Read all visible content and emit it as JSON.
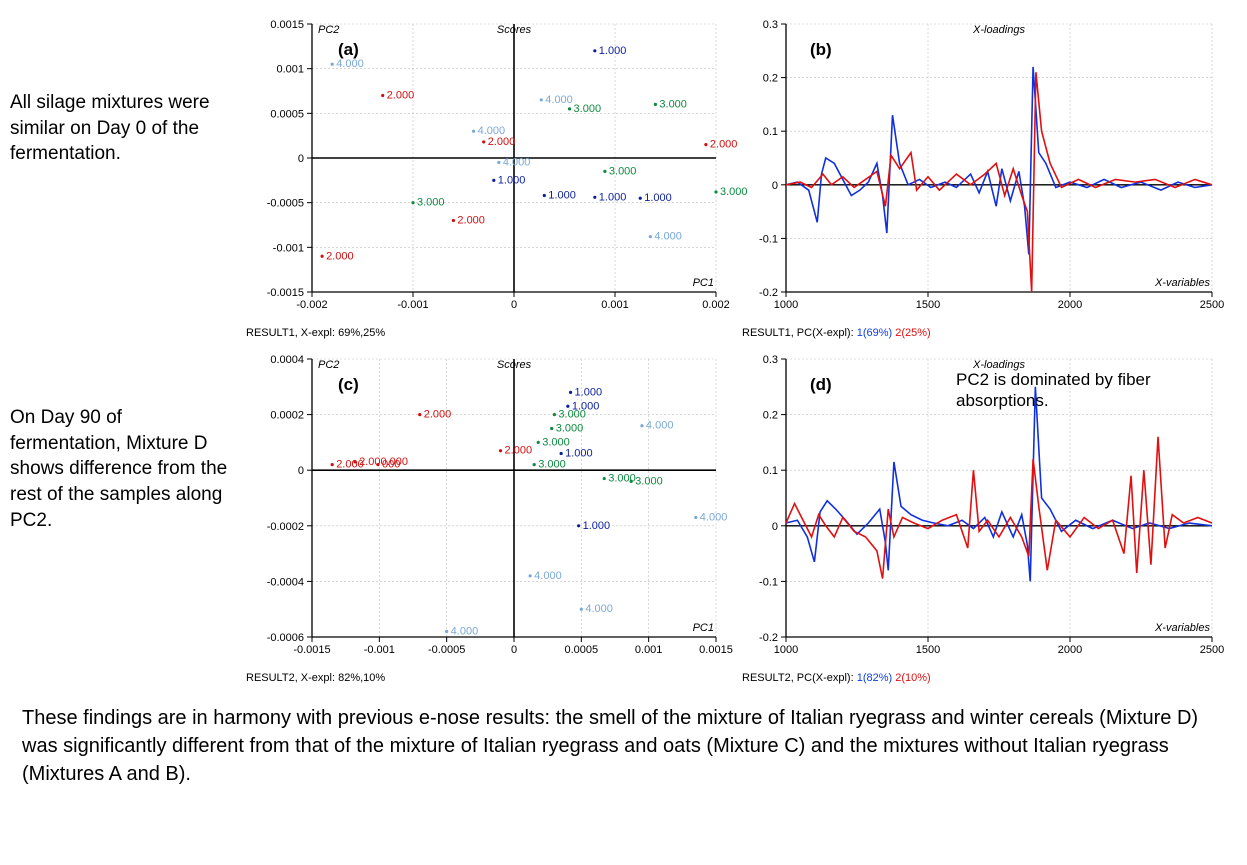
{
  "side_a": "All silage mixtures were similar on Day 0 of the fermentation.",
  "side_c": "On Day 90 of fermentation, Mixture D shows difference from the rest of the samples along PC2.",
  "bottom": "These findings are in harmony with previous e-nose results: the smell of the mixture of Italian ryegrass and winter cereals (Mixture D) was significantly different from that of the mixture of Italian ryegrass and oats (Mixture C) and the mixtures without Italian ryegrass (Mixtures A and B).",
  "panel_a_label": "(a)",
  "panel_b_label": "(b)",
  "panel_c_label": "(c)",
  "panel_d_label": "(d)",
  "loadings_d_anno": "PC2 is dominated by fiber absorptions.",
  "colors": {
    "axis": "#000000",
    "grid": "#bfbfbf",
    "text": "#000000",
    "series_blue": "#1030dd",
    "series_red": "#e01010",
    "pt_darkblue": "#0b1f9c",
    "pt_red": "#d01010",
    "pt_green": "#0d8a3e",
    "pt_lightblue": "#7aa8d8"
  },
  "chart_a": {
    "type": "scatter",
    "title_left": "PC2",
    "title_center": "Scores",
    "xaxis_label": "PC1",
    "xlim": [
      -0.002,
      0.002
    ],
    "ylim": [
      -0.0015,
      0.0015
    ],
    "xticks": [
      -0.002,
      -0.001,
      0,
      0.001,
      0.002
    ],
    "yticks": [
      -0.0015,
      -0.001,
      -0.0005,
      0,
      0.0005,
      0.001,
      0.0015
    ],
    "caption": "RESULT1, X-expl: 69%,25%",
    "points": [
      {
        "x": 0.0008,
        "y": 0.0012,
        "lbl": "1.000",
        "c": "pt_darkblue"
      },
      {
        "x": -0.0002,
        "y": -0.00025,
        "lbl": "1.000",
        "c": "pt_darkblue"
      },
      {
        "x": 0.0003,
        "y": -0.00042,
        "lbl": "1.000",
        "c": "pt_darkblue"
      },
      {
        "x": 0.0008,
        "y": -0.00044,
        "lbl": "1.000",
        "c": "pt_darkblue"
      },
      {
        "x": 0.00125,
        "y": -0.00045,
        "lbl": "1.000",
        "c": "pt_darkblue"
      },
      {
        "x": -0.0013,
        "y": 0.0007,
        "lbl": "2.000",
        "c": "pt_red"
      },
      {
        "x": -0.0003,
        "y": 0.00018,
        "lbl": "2.000",
        "c": "pt_red"
      },
      {
        "x": 0.0019,
        "y": 0.00015,
        "lbl": "2.000",
        "c": "pt_red"
      },
      {
        "x": -0.0006,
        "y": -0.0007,
        "lbl": "2.000",
        "c": "pt_red"
      },
      {
        "x": -0.0019,
        "y": -0.0011,
        "lbl": "2.000",
        "c": "pt_red"
      },
      {
        "x": -0.001,
        "y": -0.0005,
        "lbl": "3.000",
        "c": "pt_green"
      },
      {
        "x": 0.00055,
        "y": 0.00055,
        "lbl": "3.000",
        "c": "pt_green"
      },
      {
        "x": 0.0014,
        "y": 0.0006,
        "lbl": "3.000",
        "c": "pt_green"
      },
      {
        "x": 0.0009,
        "y": -0.00015,
        "lbl": "3.000",
        "c": "pt_green"
      },
      {
        "x": 0.002,
        "y": -0.00038,
        "lbl": "3.000",
        "c": "pt_green"
      },
      {
        "x": -0.0018,
        "y": 0.00105,
        "lbl": "4.000",
        "c": "pt_lightblue"
      },
      {
        "x": 0.00027,
        "y": 0.00065,
        "lbl": "4.000",
        "c": "pt_lightblue"
      },
      {
        "x": -0.0004,
        "y": 0.0003,
        "lbl": "4.000",
        "c": "pt_lightblue"
      },
      {
        "x": -0.00015,
        "y": -5e-05,
        "lbl": "4.000",
        "c": "pt_lightblue"
      },
      {
        "x": 0.00135,
        "y": -0.00088,
        "lbl": "4.000",
        "c": "pt_lightblue"
      }
    ]
  },
  "chart_b": {
    "type": "line",
    "title_center": "X-loadings",
    "xaxis_label": "X-variables",
    "xlim": [
      1000,
      2500
    ],
    "ylim": [
      -0.2,
      0.3
    ],
    "xticks": [
      1000,
      1500,
      2000,
      2500
    ],
    "yticks": [
      -0.2,
      -0.1,
      0,
      0.1,
      0.2,
      0.3
    ],
    "caption_pre": "RESULT1, PC(X-expl): ",
    "caption_1": "1(69%)",
    "caption_2": "2(25%)",
    "series": [
      {
        "color": "series_blue",
        "data": [
          [
            1000,
            0
          ],
          [
            1040,
            0.005
          ],
          [
            1080,
            -0.01
          ],
          [
            1110,
            -0.07
          ],
          [
            1125,
            0.02
          ],
          [
            1140,
            0.05
          ],
          [
            1170,
            0.04
          ],
          [
            1200,
            0.01
          ],
          [
            1230,
            -0.02
          ],
          [
            1260,
            -0.01
          ],
          [
            1290,
            0.005
          ],
          [
            1320,
            0.04
          ],
          [
            1340,
            -0.02
          ],
          [
            1355,
            -0.09
          ],
          [
            1375,
            0.13
          ],
          [
            1400,
            0.04
          ],
          [
            1430,
            0
          ],
          [
            1470,
            0.01
          ],
          [
            1510,
            -0.005
          ],
          [
            1560,
            0.005
          ],
          [
            1600,
            -0.005
          ],
          [
            1650,
            0.02
          ],
          [
            1680,
            -0.015
          ],
          [
            1710,
            0.025
          ],
          [
            1740,
            -0.04
          ],
          [
            1760,
            0.03
          ],
          [
            1790,
            -0.03
          ],
          [
            1820,
            0.025
          ],
          [
            1840,
            -0.04
          ],
          [
            1855,
            -0.13
          ],
          [
            1870,
            0.22
          ],
          [
            1890,
            0.06
          ],
          [
            1915,
            0.04
          ],
          [
            1950,
            -0.005
          ],
          [
            2000,
            0.005
          ],
          [
            2060,
            -0.005
          ],
          [
            2120,
            0.01
          ],
          [
            2180,
            -0.005
          ],
          [
            2250,
            0.005
          ],
          [
            2320,
            -0.01
          ],
          [
            2380,
            0.005
          ],
          [
            2440,
            -0.005
          ],
          [
            2500,
            0
          ]
        ]
      },
      {
        "color": "series_red",
        "data": [
          [
            1000,
            0
          ],
          [
            1050,
            0.005
          ],
          [
            1090,
            -0.005
          ],
          [
            1130,
            0.02
          ],
          [
            1160,
            0
          ],
          [
            1200,
            0.015
          ],
          [
            1240,
            -0.005
          ],
          [
            1280,
            0.01
          ],
          [
            1320,
            0.025
          ],
          [
            1350,
            -0.04
          ],
          [
            1370,
            0.055
          ],
          [
            1400,
            0.03
          ],
          [
            1440,
            0.06
          ],
          [
            1460,
            -0.01
          ],
          [
            1500,
            0.015
          ],
          [
            1540,
            -0.01
          ],
          [
            1600,
            0.02
          ],
          [
            1650,
            0
          ],
          [
            1700,
            0.02
          ],
          [
            1740,
            0.04
          ],
          [
            1770,
            -0.02
          ],
          [
            1800,
            0.03
          ],
          [
            1830,
            -0.02
          ],
          [
            1850,
            -0.05
          ],
          [
            1865,
            -0.2
          ],
          [
            1880,
            0.21
          ],
          [
            1900,
            0.1
          ],
          [
            1930,
            0.04
          ],
          [
            1970,
            -0.005
          ],
          [
            2030,
            0.01
          ],
          [
            2090,
            -0.005
          ],
          [
            2160,
            0.01
          ],
          [
            2230,
            0.005
          ],
          [
            2300,
            0.01
          ],
          [
            2370,
            -0.005
          ],
          [
            2440,
            0.01
          ],
          [
            2500,
            0
          ]
        ]
      }
    ]
  },
  "chart_c": {
    "type": "scatter",
    "title_left": "PC2",
    "title_center": "Scores",
    "xaxis_label": "PC1",
    "xlim": [
      -0.0015,
      0.0015
    ],
    "ylim": [
      -0.0006,
      0.0004
    ],
    "xticks": [
      -0.0015,
      -0.001,
      -0.0005,
      0,
      0.0005,
      0.001,
      0.0015
    ],
    "yticks": [
      -0.0006,
      -0.0004,
      -0.0002,
      0,
      0.0002,
      0.0004
    ],
    "caption": "RESULT2, X-expl: 82%,10%",
    "points": [
      {
        "x": 0.00042,
        "y": 0.00028,
        "lbl": "1.000",
        "c": "pt_darkblue"
      },
      {
        "x": 0.0004,
        "y": 0.00023,
        "lbl": "1.000",
        "c": "pt_darkblue"
      },
      {
        "x": 0.00035,
        "y": 6e-05,
        "lbl": "1.000",
        "c": "pt_darkblue"
      },
      {
        "x": 0.00048,
        "y": -0.0002,
        "lbl": "1.000",
        "c": "pt_darkblue"
      },
      {
        "x": -0.0007,
        "y": 0.0002,
        "lbl": "2.000",
        "c": "pt_red"
      },
      {
        "x": -0.0001,
        "y": 7e-05,
        "lbl": "2.000",
        "c": "pt_red"
      },
      {
        "x": -0.00135,
        "y": 2e-05,
        "lbl": "2.000",
        "c": "pt_red"
      },
      {
        "x": -0.00118,
        "y": 3e-05,
        "lbl": "2.000.000",
        "c": "pt_red"
      },
      {
        "x": -0.00101,
        "y": 2e-05,
        "lbl": "000",
        "c": "pt_red"
      },
      {
        "x": 0.0003,
        "y": 0.0002,
        "lbl": "3.000",
        "c": "pt_green"
      },
      {
        "x": 0.00028,
        "y": 0.00015,
        "lbl": "3.000",
        "c": "pt_green"
      },
      {
        "x": 0.00018,
        "y": 0.0001,
        "lbl": "3.000",
        "c": "pt_green"
      },
      {
        "x": 0.00015,
        "y": 2e-05,
        "lbl": "3.000",
        "c": "pt_green"
      },
      {
        "x": 0.00067,
        "y": -3e-05,
        "lbl": "3.000",
        "c": "pt_green"
      },
      {
        "x": 0.00087,
        "y": -4e-05,
        "lbl": "3.000",
        "c": "pt_green"
      },
      {
        "x": 0.00095,
        "y": 0.00016,
        "lbl": "4.000",
        "c": "pt_lightblue"
      },
      {
        "x": 0.00135,
        "y": -0.00017,
        "lbl": "4.000",
        "c": "pt_lightblue"
      },
      {
        "x": 0.00012,
        "y": -0.00038,
        "lbl": "4.000",
        "c": "pt_lightblue"
      },
      {
        "x": 0.0005,
        "y": -0.0005,
        "lbl": "4.000",
        "c": "pt_lightblue"
      },
      {
        "x": -0.0005,
        "y": -0.00058,
        "lbl": "4.000",
        "c": "pt_lightblue"
      }
    ]
  },
  "chart_d": {
    "type": "line",
    "title_center": "X-loadings",
    "xaxis_label": "X-variables",
    "xlim": [
      1000,
      2500
    ],
    "ylim": [
      -0.2,
      0.3
    ],
    "xticks": [
      1000,
      1500,
      2000,
      2500
    ],
    "yticks": [
      -0.2,
      -0.1,
      0,
      0.1,
      0.2,
      0.3
    ],
    "caption_pre": "RESULT2, PC(X-expl): ",
    "caption_1": "1(82%)",
    "caption_2": "2(10%)",
    "series": [
      {
        "color": "series_blue",
        "data": [
          [
            1000,
            0.005
          ],
          [
            1040,
            0.01
          ],
          [
            1075,
            -0.02
          ],
          [
            1100,
            -0.065
          ],
          [
            1120,
            0.025
          ],
          [
            1145,
            0.045
          ],
          [
            1175,
            0.03
          ],
          [
            1210,
            0.01
          ],
          [
            1250,
            -0.015
          ],
          [
            1290,
            0.005
          ],
          [
            1330,
            0.03
          ],
          [
            1350,
            -0.03
          ],
          [
            1360,
            -0.08
          ],
          [
            1380,
            0.115
          ],
          [
            1405,
            0.035
          ],
          [
            1440,
            0.02
          ],
          [
            1480,
            0.01
          ],
          [
            1520,
            0.005
          ],
          [
            1570,
            0
          ],
          [
            1620,
            0.01
          ],
          [
            1660,
            -0.005
          ],
          [
            1700,
            0.015
          ],
          [
            1730,
            -0.02
          ],
          [
            1760,
            0.025
          ],
          [
            1800,
            -0.02
          ],
          [
            1830,
            0.02
          ],
          [
            1850,
            -0.035
          ],
          [
            1860,
            -0.1
          ],
          [
            1878,
            0.25
          ],
          [
            1900,
            0.05
          ],
          [
            1930,
            0.03
          ],
          [
            1970,
            -0.01
          ],
          [
            2020,
            0.01
          ],
          [
            2080,
            -0.005
          ],
          [
            2150,
            0.01
          ],
          [
            2220,
            -0.005
          ],
          [
            2280,
            0.005
          ],
          [
            2350,
            -0.005
          ],
          [
            2420,
            0.005
          ],
          [
            2500,
            0
          ]
        ]
      },
      {
        "color": "series_red",
        "data": [
          [
            1000,
            0.005
          ],
          [
            1030,
            0.04
          ],
          [
            1060,
            0.01
          ],
          [
            1090,
            -0.02
          ],
          [
            1115,
            0.02
          ],
          [
            1140,
            0
          ],
          [
            1170,
            -0.02
          ],
          [
            1200,
            0.015
          ],
          [
            1240,
            -0.01
          ],
          [
            1280,
            -0.02
          ],
          [
            1320,
            -0.045
          ],
          [
            1340,
            -0.095
          ],
          [
            1360,
            0.03
          ],
          [
            1380,
            -0.02
          ],
          [
            1410,
            0.015
          ],
          [
            1450,
            0.005
          ],
          [
            1500,
            -0.005
          ],
          [
            1550,
            0.01
          ],
          [
            1600,
            0.02
          ],
          [
            1640,
            -0.04
          ],
          [
            1660,
            0.1
          ],
          [
            1680,
            -0.01
          ],
          [
            1710,
            0.01
          ],
          [
            1750,
            -0.02
          ],
          [
            1790,
            0.015
          ],
          [
            1830,
            -0.02
          ],
          [
            1855,
            -0.055
          ],
          [
            1870,
            0.12
          ],
          [
            1890,
            0.035
          ],
          [
            1920,
            -0.08
          ],
          [
            1950,
            0.01
          ],
          [
            2000,
            -0.02
          ],
          [
            2050,
            0.015
          ],
          [
            2100,
            -0.005
          ],
          [
            2150,
            0.01
          ],
          [
            2190,
            -0.05
          ],
          [
            2215,
            0.09
          ],
          [
            2235,
            -0.085
          ],
          [
            2260,
            0.1
          ],
          [
            2285,
            -0.07
          ],
          [
            2310,
            0.16
          ],
          [
            2335,
            -0.04
          ],
          [
            2360,
            0.02
          ],
          [
            2400,
            0.005
          ],
          [
            2450,
            0.015
          ],
          [
            2500,
            0.005
          ]
        ]
      }
    ]
  }
}
